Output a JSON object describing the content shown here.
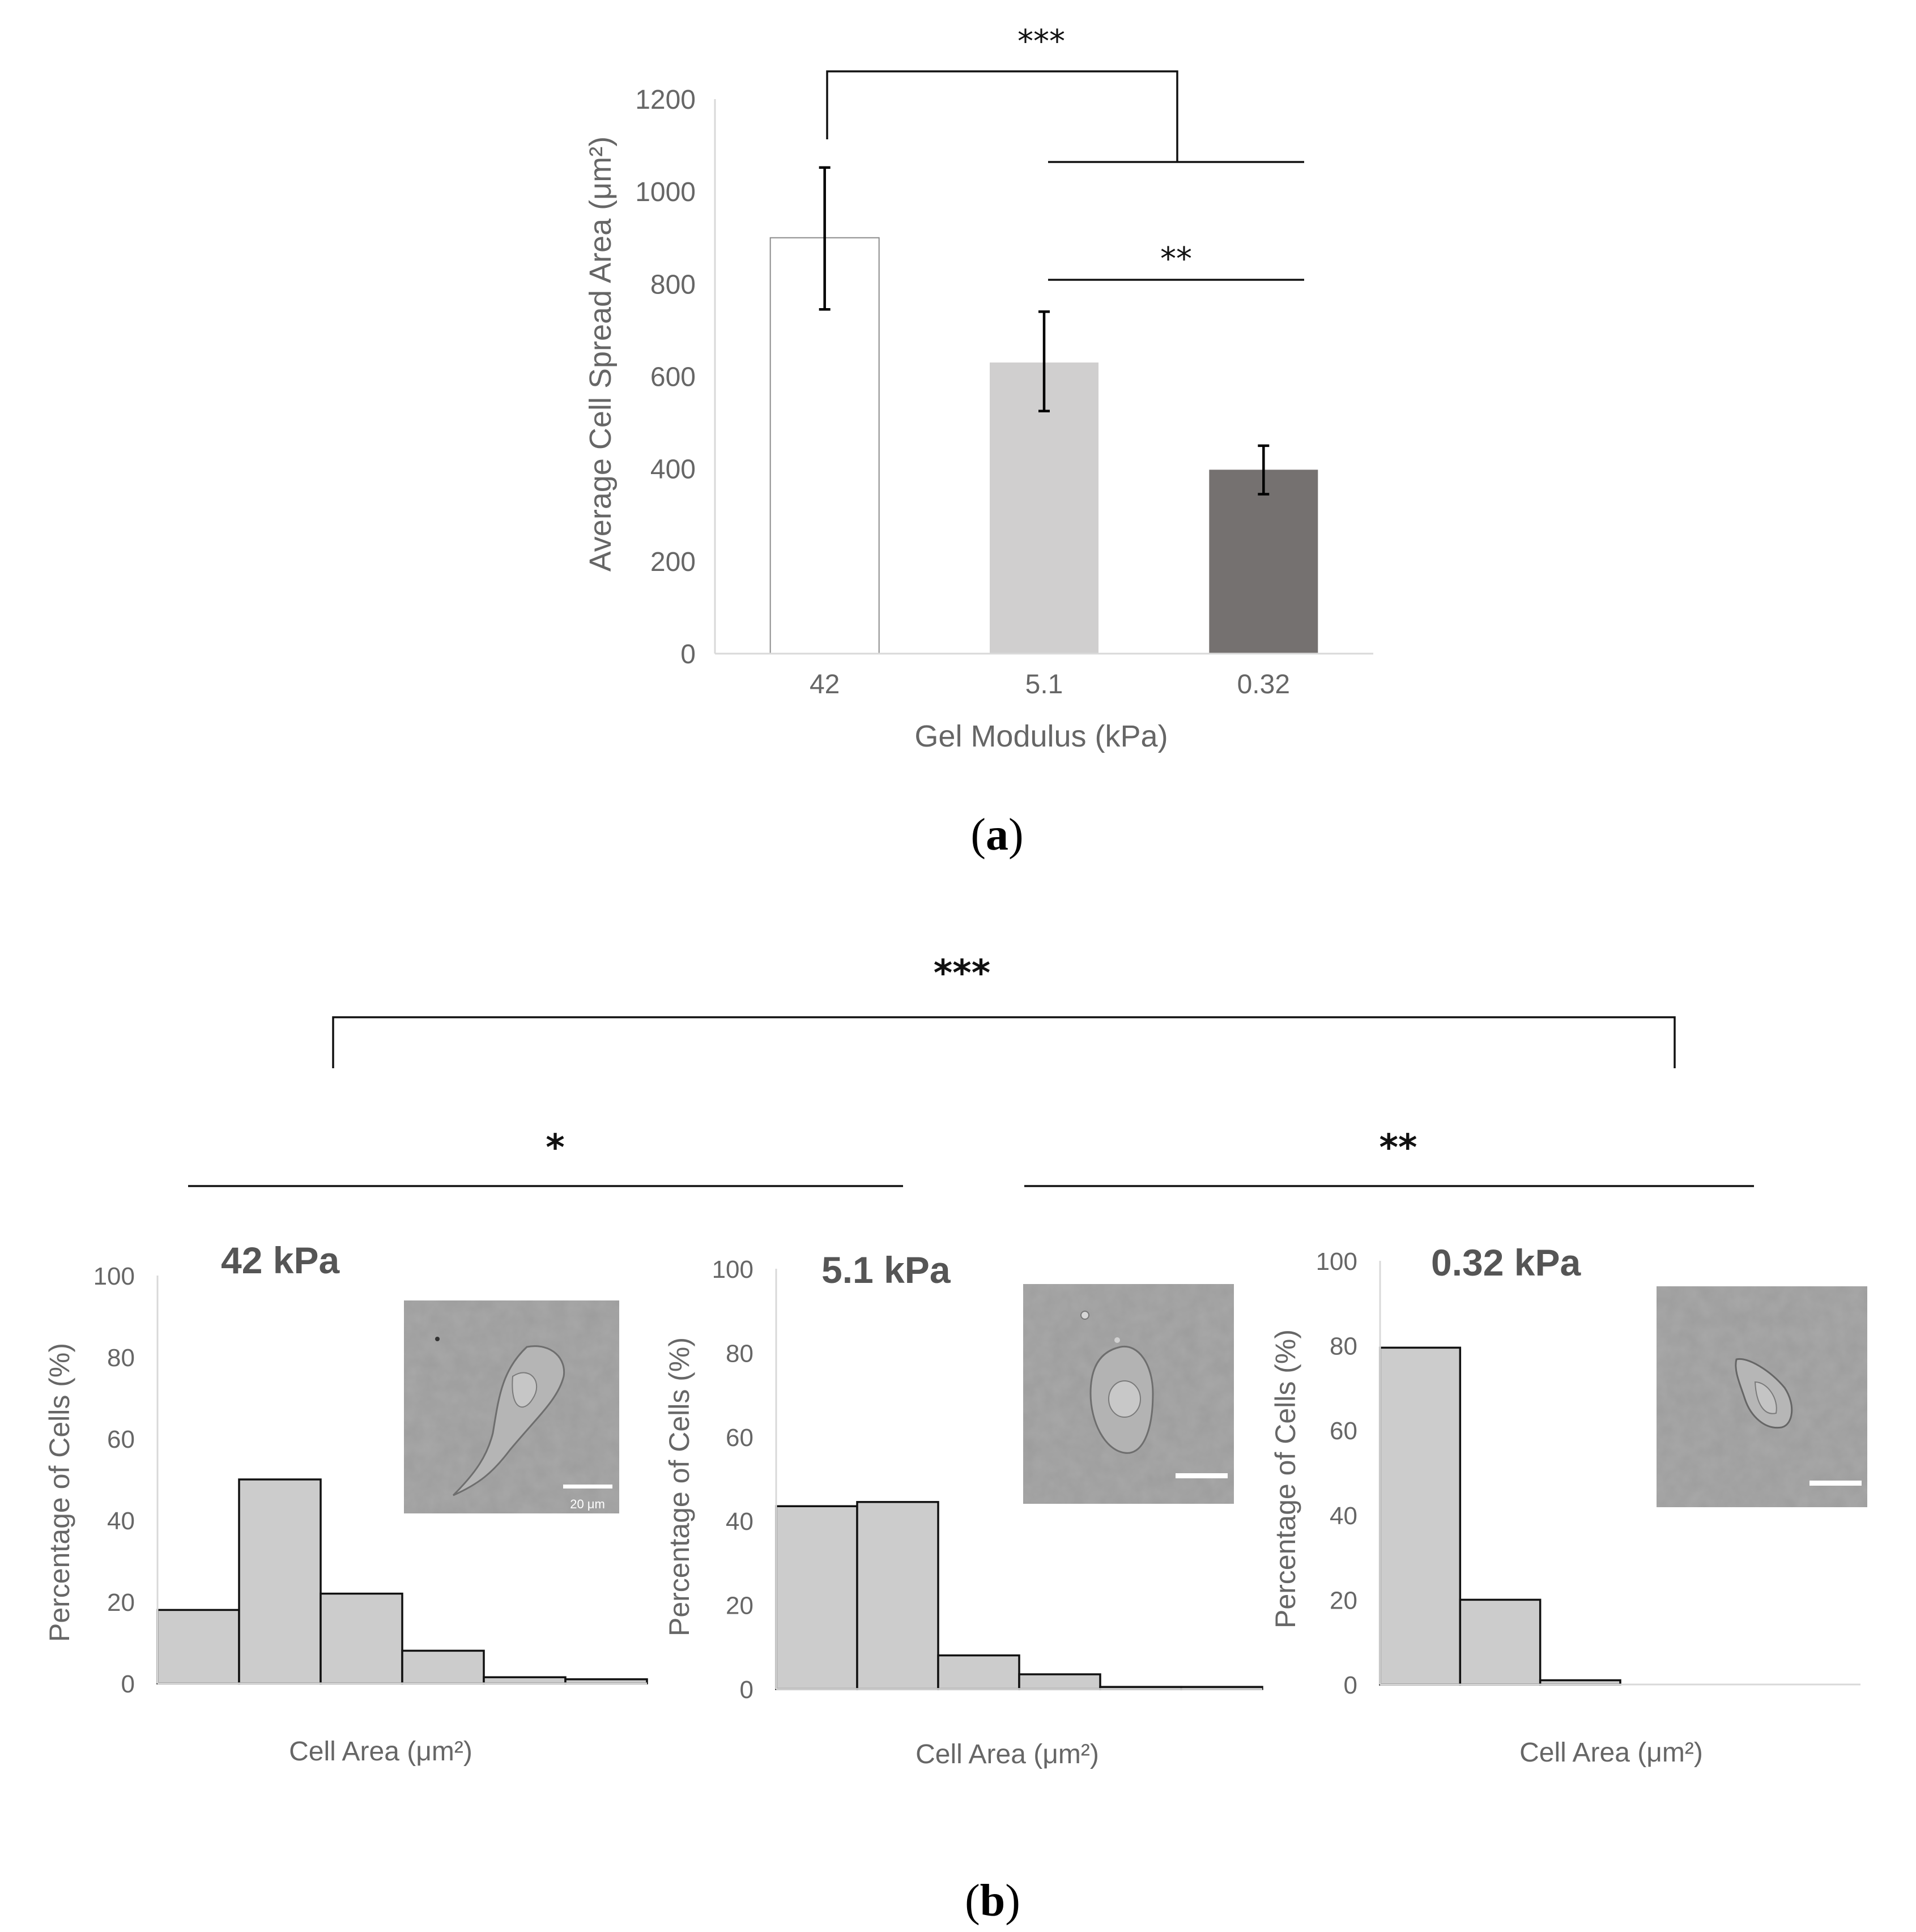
{
  "panel_a": {
    "caption": "(a)",
    "caption_letter": "a"
  },
  "panel_b": {
    "caption": "(b)",
    "caption_letter": "b"
  },
  "significance": {
    "a_top": "***",
    "a_mid": "**",
    "b_top": "***",
    "b_left": "*",
    "b_right": "**"
  },
  "colors": {
    "bar_42": "#ffffff",
    "bar_5_1": "#d0cfcf",
    "bar_0_32": "#757170",
    "hist_fill": "#cccccc",
    "axis": "#d9d9d9",
    "text": "#666666"
  },
  "chart_data": [
    {
      "type": "bar",
      "title": "",
      "xlabel": "Gel Modulus (kPa)",
      "ylabel": "Average Cell Spread Area (μm²)",
      "categories": [
        "42",
        "5.1",
        "0.32"
      ],
      "values": [
        900,
        630,
        398
      ],
      "error_low": [
        745,
        525,
        345
      ],
      "error_high": [
        1052,
        740,
        450
      ],
      "ylim": [
        0,
        1200
      ],
      "yticks": [
        "0",
        "200",
        "400",
        "600",
        "800",
        "1000",
        "1200"
      ],
      "grid": false,
      "significance": [
        {
          "label": "***",
          "from": "42",
          "to": "5.1–0.32"
        },
        {
          "label": "**",
          "from": "5.1",
          "to": "0.32"
        }
      ]
    },
    {
      "type": "bar",
      "title": "42 kPa",
      "xlabel": "Cell Area (μm²)",
      "ylabel": "Percentage of Cells (%)",
      "values": [
        18,
        50,
        22,
        8,
        1.5,
        1
      ],
      "ylim": [
        0,
        100
      ],
      "yticks": [
        "0",
        "20",
        "40",
        "60",
        "80",
        "100"
      ],
      "scale_bar_label": "20 μm"
    },
    {
      "type": "bar",
      "title": "5.1 kPa",
      "xlabel": "Cell Area (μm²)",
      "ylabel": "Percentage of Cells (%)",
      "values": [
        43.5,
        44.5,
        8,
        3.5,
        0.5,
        0.5
      ],
      "ylim": [
        0,
        100
      ],
      "yticks": [
        "0",
        "20",
        "40",
        "60",
        "80",
        "100"
      ]
    },
    {
      "type": "bar",
      "title": "0.32 kPa",
      "xlabel": "Cell Area (μm²)",
      "ylabel": "Percentage of Cells (%)",
      "values": [
        79.5,
        20,
        1,
        0,
        0,
        0
      ],
      "ylim": [
        0,
        100
      ],
      "yticks": [
        "0",
        "20",
        "40",
        "60",
        "80",
        "100"
      ]
    }
  ]
}
